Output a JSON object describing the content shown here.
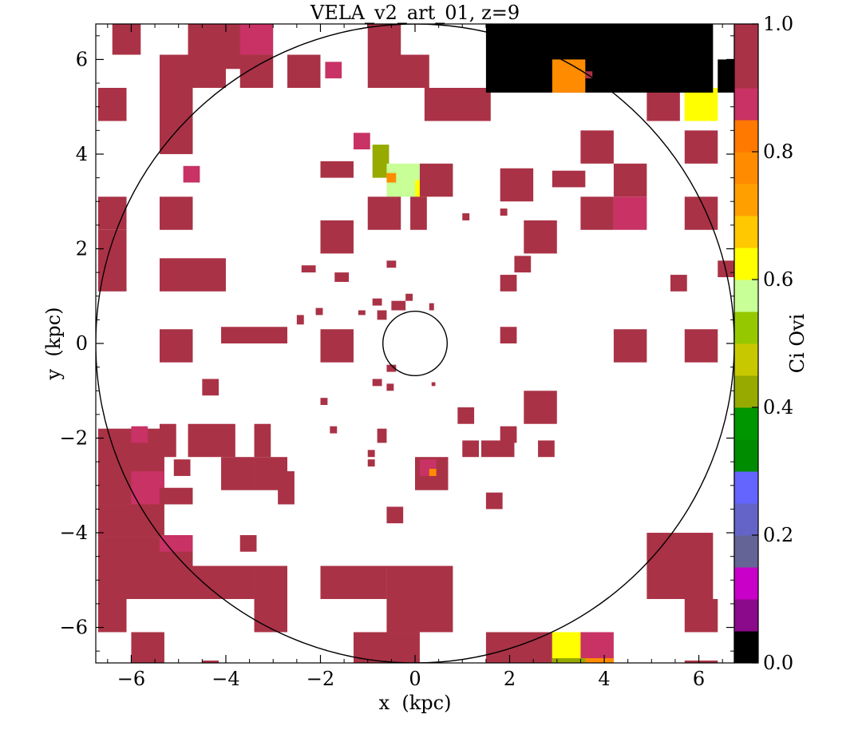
{
  "chart_data": {
    "type": "heatmap",
    "title": "VELA_v2_art_01, z=9",
    "xlabel": "x  (kpc)",
    "ylabel": "y  (kpc)",
    "xlim": [
      -6.75,
      6.75
    ],
    "ylim": [
      -6.75,
      6.75
    ],
    "xticks": [
      -6,
      -4,
      -2,
      0,
      2,
      4,
      6
    ],
    "yticks": [
      -6,
      -4,
      -2,
      0,
      2,
      4,
      6
    ],
    "xtick_labels": [
      "−6",
      "−4",
      "−2",
      "0",
      "2",
      "4",
      "6"
    ],
    "ytick_labels": [
      "−6",
      "−4",
      "−2",
      "0",
      "2",
      "4",
      "6"
    ],
    "colorbar": {
      "label": "Ci Ovi",
      "range": [
        0.0,
        1.0
      ],
      "ticks": [
        0.0,
        0.2,
        0.4,
        0.6,
        0.8,
        1.0
      ],
      "tick_labels": [
        "0.0",
        "0.2",
        "0.4",
        "0.6",
        "0.8",
        "1.0"
      ],
      "levels": [
        0.0,
        0.05,
        0.1,
        0.15,
        0.2,
        0.25,
        0.3,
        0.35,
        0.4,
        0.45,
        0.5,
        0.55,
        0.6,
        0.65,
        0.7,
        0.75,
        0.8,
        0.85,
        0.9,
        0.95,
        1.0
      ],
      "colors": [
        "#000000",
        "#8b0a8b",
        "#c800c8",
        "#646496",
        "#6464c8",
        "#6464ff",
        "#008c00",
        "#009600",
        "#96aa00",
        "#c8c800",
        "#96c800",
        "#c8ff96",
        "#ffff00",
        "#ffc800",
        "#ffa000",
        "#ff8c00",
        "#ff7800",
        "#c83264",
        "#aa3246"
      ]
    },
    "circles": [
      {
        "cx": 0,
        "cy": 0,
        "r": 6.75
      },
      {
        "cx": 0,
        "cy": 0,
        "r": 0.68
      }
    ],
    "cells": [
      {
        "x": -6.4,
        "y": 6.1,
        "w": 0.6,
        "h": 0.7,
        "v": 0.98
      },
      {
        "x": -4.8,
        "y": 5.8,
        "w": 1.4,
        "h": 1.0,
        "v": 0.98
      },
      {
        "x": -3.7,
        "y": 6.1,
        "w": 0.7,
        "h": 0.7,
        "v": 0.92
      },
      {
        "x": -5.4,
        "y": 5.4,
        "w": 1.4,
        "h": 0.7,
        "v": 0.98
      },
      {
        "x": -3.7,
        "y": 5.4,
        "w": 0.7,
        "h": 0.7,
        "v": 0.98
      },
      {
        "x": -2.7,
        "y": 5.4,
        "w": 0.7,
        "h": 0.7,
        "v": 0.98
      },
      {
        "x": -1.0,
        "y": 5.4,
        "w": 0.7,
        "h": 1.4,
        "v": 0.98
      },
      {
        "x": -0.4,
        "y": 5.4,
        "w": 0.7,
        "h": 0.7,
        "v": 0.98
      },
      {
        "x": -1.9,
        "y": 5.6,
        "w": 0.35,
        "h": 0.35,
        "v": 0.92
      },
      {
        "x": -6.7,
        "y": 4.7,
        "w": 0.6,
        "h": 0.7,
        "v": 0.98
      },
      {
        "x": -5.4,
        "y": 4.0,
        "w": 0.7,
        "h": 1.4,
        "v": 0.98
      },
      {
        "x": 0.2,
        "y": 4.7,
        "w": 1.4,
        "h": 0.7,
        "v": 0.98
      },
      {
        "x": 4.9,
        "y": 4.7,
        "w": 0.7,
        "h": 0.7,
        "v": 0.98
      },
      {
        "x": 5.7,
        "y": 4.7,
        "w": 0.7,
        "h": 0.7,
        "v": 0.65
      },
      {
        "x": 3.5,
        "y": 3.8,
        "w": 0.7,
        "h": 0.7,
        "v": 0.98
      },
      {
        "x": 5.7,
        "y": 3.8,
        "w": 0.7,
        "h": 0.7,
        "v": 0.98
      },
      {
        "x": -1.3,
        "y": 4.1,
        "w": 0.35,
        "h": 0.35,
        "v": 0.92
      },
      {
        "x": -0.9,
        "y": 3.5,
        "w": 0.35,
        "h": 0.7,
        "v": 0.47
      },
      {
        "x": -0.6,
        "y": 3.1,
        "w": 0.7,
        "h": 0.7,
        "v": 0.62
      },
      {
        "x": -0.6,
        "y": 3.4,
        "w": 0.2,
        "h": 0.2,
        "v": 0.8
      },
      {
        "x": 0.0,
        "y": 3.1,
        "w": 0.35,
        "h": 0.35,
        "v": 0.65
      },
      {
        "x": 0.1,
        "y": 3.1,
        "w": 0.7,
        "h": 0.7,
        "v": 0.98
      },
      {
        "x": -2.0,
        "y": 3.5,
        "w": 0.7,
        "h": 0.35,
        "v": 0.98
      },
      {
        "x": -4.9,
        "y": 3.4,
        "w": 0.35,
        "h": 0.35,
        "v": 0.92
      },
      {
        "x": 1.8,
        "y": 3.0,
        "w": 0.7,
        "h": 0.7,
        "v": 0.98
      },
      {
        "x": 2.9,
        "y": 3.3,
        "w": 0.7,
        "h": 0.35,
        "v": 0.98
      },
      {
        "x": 4.2,
        "y": 3.1,
        "w": 0.7,
        "h": 0.7,
        "v": 0.98
      },
      {
        "x": -6.7,
        "y": 2.4,
        "w": 0.6,
        "h": 0.7,
        "v": 0.98
      },
      {
        "x": -5.4,
        "y": 2.4,
        "w": 0.7,
        "h": 0.7,
        "v": 0.98
      },
      {
        "x": -1.0,
        "y": 2.4,
        "w": 0.7,
        "h": 0.7,
        "v": 0.98
      },
      {
        "x": -0.1,
        "y": 2.4,
        "w": 0.35,
        "h": 0.7,
        "v": 0.98
      },
      {
        "x": 3.5,
        "y": 2.4,
        "w": 0.7,
        "h": 0.7,
        "v": 0.98
      },
      {
        "x": 4.2,
        "y": 2.4,
        "w": 0.7,
        "h": 0.7,
        "v": 0.92
      },
      {
        "x": 5.7,
        "y": 2.4,
        "w": 0.7,
        "h": 0.7,
        "v": 0.98
      },
      {
        "x": -2.0,
        "y": 1.9,
        "w": 0.7,
        "h": 0.7,
        "v": 0.98
      },
      {
        "x": 2.3,
        "y": 1.9,
        "w": 0.7,
        "h": 0.7,
        "v": 0.98
      },
      {
        "x": 2.1,
        "y": 1.5,
        "w": 0.35,
        "h": 0.35,
        "v": 0.98
      },
      {
        "x": -6.7,
        "y": 1.7,
        "w": 0.6,
        "h": 0.7,
        "v": 0.98
      },
      {
        "x": -5.4,
        "y": 1.1,
        "w": 1.4,
        "h": 0.7,
        "v": 0.98
      },
      {
        "x": -6.7,
        "y": 1.1,
        "w": 0.6,
        "h": 0.7,
        "v": 0.98
      },
      {
        "x": 6.4,
        "y": 1.4,
        "w": 0.35,
        "h": 0.35,
        "v": 0.98
      },
      {
        "x": 1.8,
        "y": 1.1,
        "w": 0.35,
        "h": 0.35,
        "v": 0.98
      },
      {
        "x": 5.4,
        "y": 1.1,
        "w": 0.35,
        "h": 0.35,
        "v": 0.98
      },
      {
        "x": -5.4,
        "y": -0.4,
        "w": 0.7,
        "h": 0.7,
        "v": 0.98
      },
      {
        "x": -4.1,
        "y": 0.0,
        "w": 1.4,
        "h": 0.35,
        "v": 0.98
      },
      {
        "x": -2.0,
        "y": -0.4,
        "w": 0.7,
        "h": 0.7,
        "v": 0.98
      },
      {
        "x": 1.8,
        "y": 0.0,
        "w": 0.35,
        "h": 0.35,
        "v": 0.98
      },
      {
        "x": 4.2,
        "y": -0.4,
        "w": 0.7,
        "h": 0.7,
        "v": 0.98
      },
      {
        "x": 5.7,
        "y": -0.4,
        "w": 0.7,
        "h": 0.7,
        "v": 0.98
      },
      {
        "x": -4.5,
        "y": -1.1,
        "w": 0.35,
        "h": 0.35,
        "v": 0.98
      },
      {
        "x": 0.9,
        "y": -1.7,
        "w": 0.35,
        "h": 0.35,
        "v": 0.98
      },
      {
        "x": 2.3,
        "y": -1.7,
        "w": 0.7,
        "h": 0.7,
        "v": 0.98
      },
      {
        "x": -6.7,
        "y": -3.4,
        "w": 1.4,
        "h": 1.6,
        "v": 0.98
      },
      {
        "x": -6.0,
        "y": -2.1,
        "w": 0.35,
        "h": 0.35,
        "v": 0.92
      },
      {
        "x": -5.4,
        "y": -2.4,
        "w": 0.35,
        "h": 0.7,
        "v": 0.98
      },
      {
        "x": -4.8,
        "y": -2.4,
        "w": 1.0,
        "h": 0.7,
        "v": 0.98
      },
      {
        "x": -4.1,
        "y": -3.1,
        "w": 0.7,
        "h": 0.7,
        "v": 0.98
      },
      {
        "x": -3.4,
        "y": -2.4,
        "w": 0.35,
        "h": 0.7,
        "v": 0.98
      },
      {
        "x": -3.4,
        "y": -3.1,
        "w": 0.7,
        "h": 0.7,
        "v": 0.98
      },
      {
        "x": -5.1,
        "y": -2.8,
        "w": 0.35,
        "h": 0.35,
        "v": 0.98
      },
      {
        "x": 1.0,
        "y": -2.4,
        "w": 0.35,
        "h": 0.35,
        "v": 0.98
      },
      {
        "x": 1.4,
        "y": -2.4,
        "w": 0.7,
        "h": 0.35,
        "v": 0.98
      },
      {
        "x": 1.8,
        "y": -2.1,
        "w": 0.35,
        "h": 0.35,
        "v": 0.98
      },
      {
        "x": 2.6,
        "y": -2.4,
        "w": 0.35,
        "h": 0.35,
        "v": 0.98
      },
      {
        "x": -6.7,
        "y": -4.1,
        "w": 1.4,
        "h": 0.7,
        "v": 0.98
      },
      {
        "x": -6.0,
        "y": -3.4,
        "w": 0.7,
        "h": 0.7,
        "v": 0.92
      },
      {
        "x": -5.4,
        "y": -3.4,
        "w": 0.7,
        "h": 0.35,
        "v": 0.98
      },
      {
        "x": -2.9,
        "y": -3.4,
        "w": 0.35,
        "h": 0.7,
        "v": 0.98
      },
      {
        "x": 0.0,
        "y": -3.1,
        "w": 0.7,
        "h": 0.7,
        "v": 0.98
      },
      {
        "x": 0.1,
        "y": -2.8,
        "w": 0.35,
        "h": 0.35,
        "v": 0.92
      },
      {
        "x": 0.3,
        "y": -2.8,
        "w": 0.15,
        "h": 0.15,
        "v": 0.8
      },
      {
        "x": 1.5,
        "y": -3.5,
        "w": 0.35,
        "h": 0.35,
        "v": 0.98
      },
      {
        "x": -0.6,
        "y": -3.8,
        "w": 0.35,
        "h": 0.35,
        "v": 0.98
      },
      {
        "x": -6.7,
        "y": -5.4,
        "w": 1.4,
        "h": 1.3,
        "v": 0.98
      },
      {
        "x": -5.4,
        "y": -5.4,
        "w": 0.7,
        "h": 1.3,
        "v": 0.98
      },
      {
        "x": -5.4,
        "y": -4.4,
        "w": 0.7,
        "h": 0.35,
        "v": 0.92
      },
      {
        "x": -3.7,
        "y": -4.4,
        "w": 0.35,
        "h": 0.35,
        "v": 0.98
      },
      {
        "x": -4.8,
        "y": -5.4,
        "w": 1.4,
        "h": 0.7,
        "v": 0.98
      },
      {
        "x": -2.0,
        "y": -5.4,
        "w": 1.4,
        "h": 0.7,
        "v": 0.98
      },
      {
        "x": -3.4,
        "y": -6.1,
        "w": 0.7,
        "h": 1.4,
        "v": 0.98
      },
      {
        "x": -0.6,
        "y": -6.1,
        "w": 1.4,
        "h": 1.4,
        "v": 0.98
      },
      {
        "x": 4.9,
        "y": -5.4,
        "w": 1.4,
        "h": 1.4,
        "v": 0.98
      },
      {
        "x": 5.7,
        "y": -6.1,
        "w": 0.7,
        "h": 0.7,
        "v": 0.98
      },
      {
        "x": -6.7,
        "y": -6.1,
        "w": 0.6,
        "h": 0.7,
        "v": 0.98
      },
      {
        "x": -6.0,
        "y": -6.8,
        "w": 0.7,
        "h": 0.7,
        "v": 0.98
      },
      {
        "x": -1.3,
        "y": -6.8,
        "w": 1.4,
        "h": 0.7,
        "v": 0.98
      },
      {
        "x": 1.5,
        "y": -6.8,
        "w": 1.4,
        "h": 0.7,
        "v": 0.98
      },
      {
        "x": 2.9,
        "y": -6.8,
        "w": 0.7,
        "h": 0.7,
        "v": 0.65
      },
      {
        "x": 3.5,
        "y": -6.8,
        "w": 0.7,
        "h": 0.7,
        "v": 0.92
      },
      {
        "x": 3.5,
        "y": -6.75,
        "w": 0.7,
        "h": 0.1,
        "v": 0.82
      },
      {
        "x": 2.9,
        "y": -6.75,
        "w": 0.7,
        "h": 0.1,
        "v": 0.47
      },
      {
        "x": 5.7,
        "y": -6.8,
        "w": 0.7,
        "h": 0.1,
        "v": 0.98
      },
      {
        "x": -4.5,
        "y": -6.8,
        "w": 0.35,
        "h": 0.1,
        "v": 0.98
      },
      {
        "x": 1.5,
        "y": 5.3,
        "w": 4.8,
        "h": 1.5,
        "v": 0.0
      },
      {
        "x": 6.4,
        "y": 5.3,
        "w": 0.4,
        "h": 0.7,
        "v": 0.0
      },
      {
        "x": 2.9,
        "y": 5.3,
        "w": 0.7,
        "h": 0.7,
        "v": 0.8
      },
      {
        "x": -1.7,
        "y": 1.3,
        "w": 0.3,
        "h": 0.2,
        "v": 0.98
      },
      {
        "x": -2.4,
        "y": 1.5,
        "w": 0.3,
        "h": 0.15,
        "v": 0.98
      },
      {
        "x": -0.6,
        "y": 1.6,
        "w": 0.2,
        "h": 0.15,
        "v": 0.98
      },
      {
        "x": -0.9,
        "y": 0.8,
        "w": 0.2,
        "h": 0.15,
        "v": 0.98
      },
      {
        "x": -0.5,
        "y": 0.7,
        "w": 0.3,
        "h": 0.2,
        "v": 0.98
      },
      {
        "x": -0.2,
        "y": 0.9,
        "w": 0.15,
        "h": 0.15,
        "v": 0.98
      },
      {
        "x": -2.5,
        "y": 0.4,
        "w": 0.15,
        "h": 0.2,
        "v": 0.98
      },
      {
        "x": -2.1,
        "y": 0.6,
        "w": 0.15,
        "h": 0.15,
        "v": 0.98
      },
      {
        "x": -0.8,
        "y": 0.5,
        "w": 0.2,
        "h": 0.2,
        "v": 0.98
      },
      {
        "x": -1.2,
        "y": 0.6,
        "w": 0.15,
        "h": 0.1,
        "v": 0.98
      },
      {
        "x": -0.6,
        "y": -0.6,
        "w": 0.2,
        "h": 0.15,
        "v": 0.98
      },
      {
        "x": -0.9,
        "y": -0.9,
        "w": 0.2,
        "h": 0.15,
        "v": 0.98
      },
      {
        "x": -0.6,
        "y": -1.0,
        "w": 0.15,
        "h": 0.15,
        "v": 0.98
      },
      {
        "x": -2.0,
        "y": -1.3,
        "w": 0.15,
        "h": 0.15,
        "v": 0.98
      },
      {
        "x": -1.8,
        "y": -1.9,
        "w": 0.15,
        "h": 0.15,
        "v": 0.98
      },
      {
        "x": -0.8,
        "y": -2.1,
        "w": 0.2,
        "h": 0.3,
        "v": 0.98
      },
      {
        "x": -1.0,
        "y": -2.4,
        "w": 0.15,
        "h": 0.15,
        "v": 0.98
      },
      {
        "x": -1.0,
        "y": -2.6,
        "w": 0.15,
        "h": 0.15,
        "v": 0.98
      },
      {
        "x": 0.35,
        "y": -0.9,
        "w": 0.08,
        "h": 0.08,
        "v": 0.98
      },
      {
        "x": 0.3,
        "y": 0.7,
        "w": 0.1,
        "h": 0.15,
        "v": 0.98
      },
      {
        "x": 1.0,
        "y": 2.6,
        "w": 0.15,
        "h": 0.15,
        "v": 0.98
      },
      {
        "x": 1.8,
        "y": 2.7,
        "w": 0.15,
        "h": 0.15,
        "v": 0.98
      },
      {
        "x": 3.6,
        "y": 5.6,
        "w": 0.15,
        "h": 0.15,
        "v": 0.98
      }
    ]
  }
}
